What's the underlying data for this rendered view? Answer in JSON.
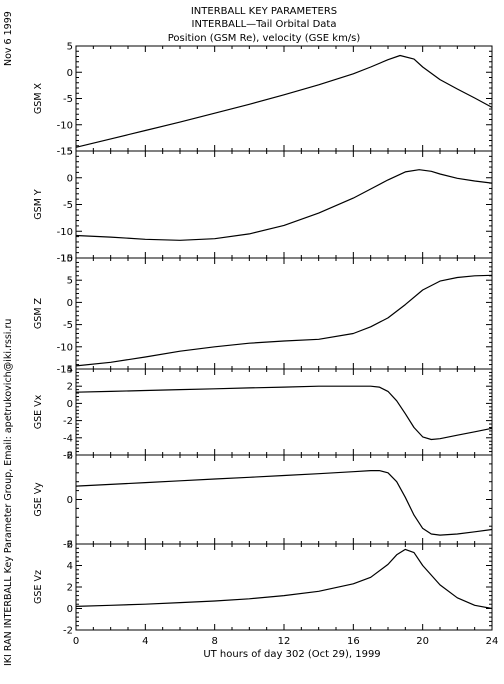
{
  "header": {
    "title_lines": [
      "INTERBALL KEY PARAMETERS",
      "INTERBALL—Tail Orbital Data",
      "Position (GSM Re), velocity (GSE km/s)"
    ],
    "date_stamp": "Nov  6 1999",
    "credit": "IKI RAN INTERBALL Key Parameter Group, Email: apetrukovich@iki.rssi.ru"
  },
  "chart_data": [
    {
      "type": "line",
      "ylabel": "GSM X",
      "ylim": [
        -15,
        5
      ],
      "yticks": [
        -15,
        -10,
        -5,
        0,
        5
      ],
      "x": [
        0,
        2,
        4,
        6,
        8,
        10,
        12,
        14,
        16,
        17,
        18,
        18.7,
        19.5,
        20,
        21,
        22,
        23,
        24
      ],
      "y": [
        -14.3,
        -12.7,
        -11.1,
        -9.5,
        -7.8,
        -6.1,
        -4.3,
        -2.4,
        -0.3,
        1.0,
        2.4,
        3.2,
        2.5,
        1.0,
        -1.4,
        -3.2,
        -4.9,
        -6.7
      ]
    },
    {
      "type": "line",
      "ylabel": "GSM Y",
      "ylim": [
        -15,
        5
      ],
      "yticks": [
        -15,
        -10,
        -5,
        0,
        5
      ],
      "x": [
        0,
        2,
        4,
        6,
        8,
        10,
        12,
        14,
        16,
        17,
        18,
        19,
        19.8,
        20.5,
        21,
        22,
        23,
        24
      ],
      "y": [
        -10.8,
        -11.1,
        -11.5,
        -11.7,
        -11.4,
        -10.5,
        -8.9,
        -6.6,
        -3.8,
        -2.1,
        -0.4,
        1.1,
        1.5,
        1.2,
        0.7,
        -0.1,
        -0.6,
        -1.0
      ]
    },
    {
      "type": "line",
      "ylabel": "GSM Z",
      "ylim": [
        -15,
        10
      ],
      "yticks": [
        -15,
        -10,
        -5,
        0,
        5,
        10
      ],
      "x": [
        0,
        2,
        4,
        6,
        8,
        10,
        12,
        14,
        16,
        17,
        18,
        19,
        20,
        21,
        22,
        23,
        24
      ],
      "y": [
        -14.3,
        -13.5,
        -12.3,
        -11.0,
        -10.0,
        -9.2,
        -8.7,
        -8.3,
        -7.0,
        -5.5,
        -3.5,
        -0.5,
        2.8,
        4.8,
        5.6,
        6.0,
        6.1
      ]
    },
    {
      "type": "line",
      "ylabel": "GSE Vx",
      "ylim": [
        -6,
        4
      ],
      "yticks": [
        -6,
        -4,
        -2,
        0,
        2,
        4
      ],
      "x": [
        0,
        2,
        4,
        6,
        8,
        10,
        12,
        14,
        16,
        17,
        17.5,
        18,
        18.5,
        19,
        19.5,
        20,
        20.5,
        21,
        22,
        23,
        24
      ],
      "y": [
        1.3,
        1.4,
        1.5,
        1.6,
        1.7,
        1.8,
        1.9,
        2.0,
        2.0,
        2.0,
        1.9,
        1.4,
        0.3,
        -1.2,
        -2.8,
        -3.9,
        -4.2,
        -4.1,
        -3.7,
        -3.3,
        -2.9
      ]
    },
    {
      "type": "line",
      "ylabel": "GSE Vy",
      "ylim": [
        -2,
        2
      ],
      "yticks": [
        -2,
        0,
        2
      ],
      "x": [
        0,
        2,
        4,
        6,
        8,
        10,
        12,
        14,
        16,
        17,
        17.5,
        18,
        18.5,
        19,
        19.5,
        20,
        20.5,
        21,
        22,
        23,
        24
      ],
      "y": [
        0.6,
        0.68,
        0.76,
        0.84,
        0.92,
        1.0,
        1.08,
        1.16,
        1.25,
        1.3,
        1.3,
        1.2,
        0.8,
        0.1,
        -0.7,
        -1.3,
        -1.55,
        -1.6,
        -1.55,
        -1.45,
        -1.35
      ]
    },
    {
      "type": "line",
      "ylabel": "GSE Vz",
      "ylim": [
        -2,
        6
      ],
      "yticks": [
        -2,
        0,
        2,
        4,
        6
      ],
      "xlim": [
        0,
        24
      ],
      "xticks": [
        0,
        4,
        8,
        12,
        16,
        20,
        24
      ],
      "xlabel": "UT hours of day 302 (Oct 29), 1999",
      "x": [
        0,
        2,
        4,
        6,
        8,
        10,
        12,
        14,
        16,
        17,
        18,
        18.5,
        19,
        19.5,
        20,
        21,
        22,
        23,
        24
      ],
      "y": [
        0.2,
        0.3,
        0.4,
        0.55,
        0.7,
        0.9,
        1.2,
        1.6,
        2.3,
        2.9,
        4.1,
        5.0,
        5.5,
        5.2,
        4.0,
        2.2,
        1.0,
        0.3,
        0.0
      ]
    }
  ]
}
